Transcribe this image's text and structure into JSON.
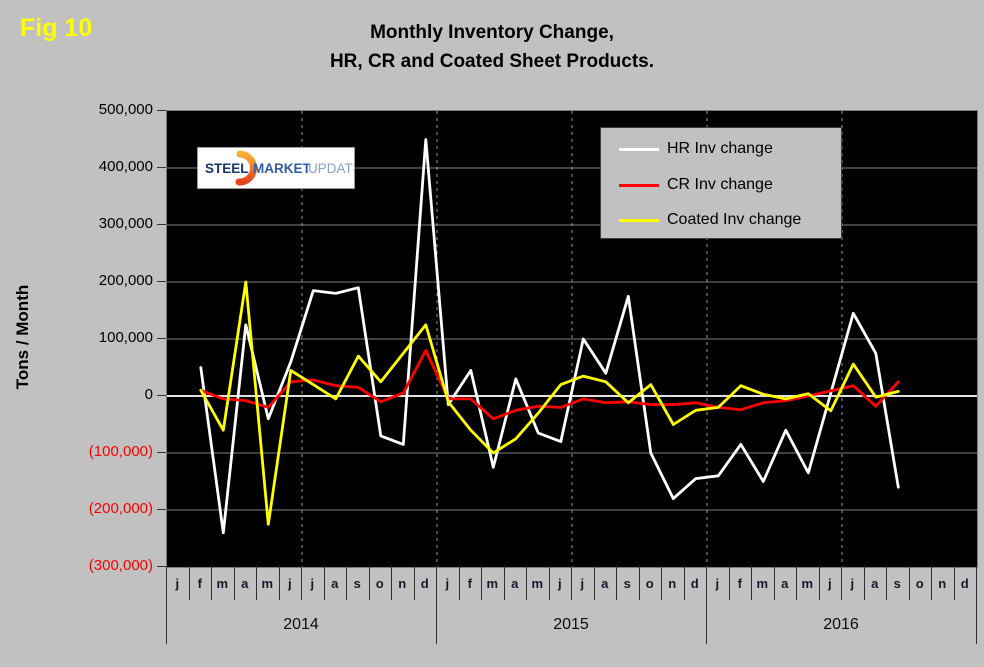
{
  "fig_label": "Fig 10",
  "title_line1": "Monthly Inventory Change,",
  "title_line2": "HR, CR and Coated Sheet  Products.",
  "colors": {
    "background": "#c1c1c1",
    "plot_background": "#000000",
    "grid": "#7f7f7f",
    "zero_line": "#e0e0e0",
    "dashed_grid": "#9a9a9a",
    "negative_tick": "#ff0000",
    "fig_label": "#ffff00",
    "hr_series": "#ffffff",
    "cr_series": "#ff0000",
    "coated_series": "#ffff00"
  },
  "y_axis": {
    "label": "Tons / Month",
    "ticks": [
      {
        "label": "500,000",
        "negative": false
      },
      {
        "label": "400,000",
        "negative": false
      },
      {
        "label": "300,000",
        "negative": false
      },
      {
        "label": "200,000",
        "negative": false
      },
      {
        "label": "100,000",
        "negative": false
      },
      {
        "label": "0",
        "negative": false
      },
      {
        "label": "(100,000)",
        "negative": true
      },
      {
        "label": "(200,000)",
        "negative": true
      },
      {
        "label": "(300,000)",
        "negative": true
      }
    ]
  },
  "x_axis": {
    "month_letters": [
      "j",
      "f",
      "m",
      "a",
      "m",
      "j",
      "j",
      "a",
      "s",
      "o",
      "n",
      "d"
    ],
    "years": [
      {
        "label": "2014"
      },
      {
        "label": "2015"
      },
      {
        "label": "2016"
      }
    ]
  },
  "legend": {
    "items": [
      {
        "label": "HR Inv change",
        "color": "#ffffff"
      },
      {
        "label": "CR Inv change",
        "color": "#ff0000"
      },
      {
        "label": "Coated Inv change",
        "color": "#ffff00"
      }
    ]
  },
  "logo": {
    "word1": "STEEL",
    "word2": "MARKET",
    "word3": "UPDATE"
  },
  "chart_data": {
    "type": "line",
    "title": "Monthly Inventory Change, HR, CR and Coated Sheet Products.",
    "ylabel": "Tons / Month",
    "ylim": [
      -300000,
      500000
    ],
    "y_gridline_step": 100000,
    "grid": "horizontal solid gray every 100,000; dashed vertical lines at each half-year boundary",
    "legend_position": "inside top-right",
    "categories": [
      "Jan 2014",
      "Feb 2014",
      "Mar 2014",
      "Apr 2014",
      "May 2014",
      "Jun 2014",
      "Jul 2014",
      "Aug 2014",
      "Sep 2014",
      "Oct 2014",
      "Nov 2014",
      "Dec 2014",
      "Jan 2015",
      "Feb 2015",
      "Mar 2015",
      "Apr 2015",
      "May 2015",
      "Jun 2015",
      "Jul 2015",
      "Aug 2015",
      "Sep 2015",
      "Oct 2015",
      "Nov 2015",
      "Dec 2015",
      "Jan 2016",
      "Feb 2016",
      "Mar 2016",
      "Apr 2016",
      "May 2016",
      "Jun 2016",
      "Jul 2016",
      "Aug 2016",
      "Sep 2016",
      "Oct 2016",
      "Nov 2016",
      "Dec 2016"
    ],
    "series": [
      {
        "name": "HR Inv change",
        "color": "#ffffff",
        "values": [
          null,
          50000,
          -240000,
          125000,
          -40000,
          60000,
          185000,
          180000,
          190000,
          -70000,
          -85000,
          450000,
          -15000,
          45000,
          -125000,
          30000,
          -65000,
          -80000,
          100000,
          40000,
          175000,
          -100000,
          -180000,
          -145000,
          -140000,
          -85000,
          -150000,
          -60000,
          -135000,
          5000,
          145000,
          75000,
          -160000,
          null,
          null,
          null
        ]
      },
      {
        "name": "CR Inv change",
        "color": "#ff0000",
        "values": [
          null,
          10000,
          -5000,
          -8000,
          -20000,
          25000,
          28000,
          18000,
          15000,
          -10000,
          5000,
          80000,
          -5000,
          -5000,
          -40000,
          -25000,
          -18000,
          -20000,
          -5000,
          -12000,
          -10000,
          -15000,
          -15000,
          -12000,
          -20000,
          -24000,
          -12000,
          -8000,
          0,
          9000,
          18000,
          -18000,
          25000,
          null,
          null,
          null
        ]
      },
      {
        "name": "Coated Inv change",
        "color": "#ffff00",
        "values": [
          null,
          10000,
          -60000,
          200000,
          -225000,
          45000,
          20000,
          -5000,
          70000,
          25000,
          75000,
          125000,
          -10000,
          -60000,
          -100000,
          -75000,
          -30000,
          20000,
          35000,
          25000,
          -12000,
          20000,
          -50000,
          -25000,
          -20000,
          18000,
          3000,
          -5000,
          4000,
          -26000,
          56000,
          -2000,
          8000,
          null,
          null,
          null
        ]
      }
    ]
  }
}
